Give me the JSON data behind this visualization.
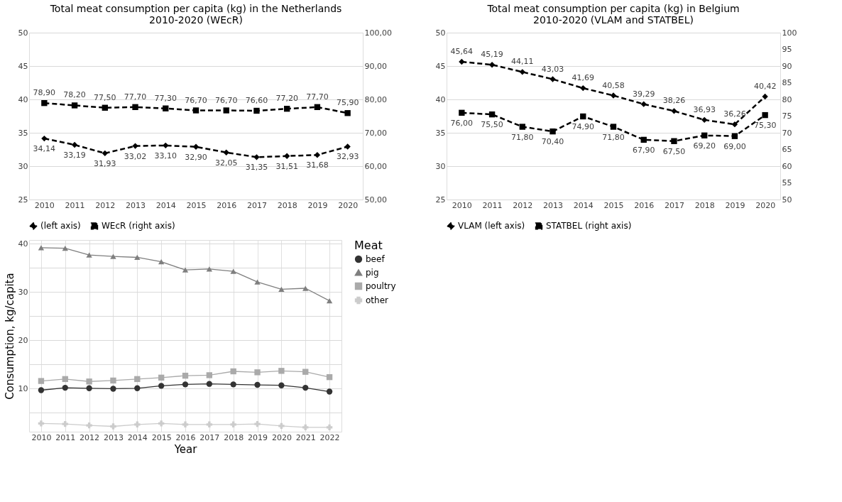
{
  "chart_data": [
    {
      "type": "line",
      "title": "Total meat consumption per capita (kg) in the Netherlands\n2010-2020 (WEcR)",
      "categories": [
        "2010",
        "2011",
        "2012",
        "2013",
        "2014",
        "2015",
        "2016",
        "2017",
        "2018",
        "2019",
        "2020"
      ],
      "ylim": [
        25,
        50
      ],
      "yticks": [
        25,
        30,
        35,
        40,
        45,
        50
      ],
      "y2lim": [
        50,
        100
      ],
      "y2ticks": [
        {
          "value": 50,
          "label": "50,00"
        },
        {
          "value": 60,
          "label": "60,00"
        },
        {
          "value": 70,
          "label": "70,00"
        },
        {
          "value": 80,
          "label": "80,00"
        },
        {
          "value": 90,
          "label": "90,00"
        },
        {
          "value": 100,
          "label": "100,00"
        }
      ],
      "grid": "y",
      "legend": "bottom",
      "line_style": "dashed",
      "series": [
        {
          "name": "(left axis)",
          "color": "#000000",
          "marker": "diamond",
          "axis": "y",
          "values": [
            34.14,
            33.19,
            31.93,
            33.02,
            33.1,
            32.9,
            32.05,
            31.35,
            31.51,
            31.68,
            32.93
          ],
          "value_labels": [
            "34,14",
            "33,19",
            "31,93",
            "33,02",
            "33,10",
            "32,90",
            "32,05",
            "31,35",
            "31,51",
            "31,68",
            "32,93"
          ]
        },
        {
          "name": "WEcR (right axis)",
          "color": "#000000",
          "marker": "square",
          "axis": "y2",
          "values": [
            78.9,
            78.2,
            77.5,
            77.7,
            77.3,
            76.7,
            76.7,
            76.6,
            77.2,
            77.7,
            75.9
          ],
          "value_labels": [
            "78,90",
            "78,20",
            "77,50",
            "77,70",
            "77,30",
            "76,70",
            "76,70",
            "76,60",
            "77,20",
            "77,70",
            "75,90"
          ]
        }
      ]
    },
    {
      "type": "line",
      "title": "Total meat consumption per capita (kg) in Belgium\n2010-2020 (VLAM and STATBEL)",
      "categories": [
        "2010",
        "2011",
        "2012",
        "2013",
        "2014",
        "2015",
        "2016",
        "2017",
        "2018",
        "2019",
        "2020"
      ],
      "ylim": [
        25,
        50
      ],
      "yticks": [
        25,
        30,
        35,
        40,
        45,
        50
      ],
      "y2lim": [
        50,
        100
      ],
      "y2ticks": [
        50,
        55,
        60,
        65,
        70,
        75,
        80,
        85,
        90,
        95,
        100
      ],
      "grid": "y",
      "legend": "bottom",
      "line_style": "dashed",
      "series": [
        {
          "name": "VLAM (left axis)",
          "color": "#000000",
          "marker": "diamond",
          "axis": "y",
          "values": [
            45.64,
            45.19,
            44.11,
            43.03,
            41.69,
            40.58,
            39.29,
            38.26,
            36.93,
            36.26,
            40.42
          ],
          "value_labels": [
            "45,64",
            "45,19",
            "44,11",
            "43,03",
            "41,69",
            "40,58",
            "39,29",
            "38,26",
            "36,93",
            "36,26",
            "40,42"
          ]
        },
        {
          "name": "STATBEL (right axis)",
          "color": "#000000",
          "marker": "square",
          "axis": "y2",
          "values": [
            76.0,
            75.5,
            71.8,
            70.4,
            74.9,
            71.8,
            67.9,
            67.5,
            69.2,
            69.0,
            75.3
          ],
          "value_labels": [
            "76,00",
            "75,50",
            "71,80",
            "70,40",
            "74,90",
            "71,80",
            "67,90",
            "67,50",
            "69,20",
            "69,00",
            "75,30"
          ]
        }
      ]
    },
    {
      "type": "line",
      "xlabel": "Year",
      "ylabel": "Consumption, kg/capita",
      "legend_title": "Meat",
      "categories": [
        "2010",
        "2011",
        "2012",
        "2013",
        "2014",
        "2015",
        "2016",
        "2017",
        "2018",
        "2019",
        "2020",
        "2021",
        "2022"
      ],
      "ylim": [
        1.1,
        40.8
      ],
      "yticks": [
        {
          "value": 5,
          "label": null
        },
        10,
        {
          "value": 15,
          "label": null
        },
        20,
        {
          "value": 25,
          "label": null
        },
        30,
        {
          "value": 35,
          "label": null
        },
        40
      ],
      "grid": true,
      "legend": "right",
      "line_style": "solid",
      "series": [
        {
          "name": "beef",
          "color": "#333333",
          "marker": "circle",
          "values": [
            9.7,
            10.2,
            10.1,
            10.0,
            10.1,
            10.6,
            10.9,
            11.0,
            10.9,
            10.8,
            10.7,
            10.2,
            9.4
          ]
        },
        {
          "name": "pig",
          "color": "#7f7f7f",
          "marker": "triangle",
          "values": [
            39.2,
            39.1,
            37.7,
            37.4,
            37.2,
            36.3,
            34.6,
            34.8,
            34.3,
            32.1,
            30.6,
            30.8,
            28.2
          ]
        },
        {
          "name": "poultry",
          "color": "#aaaaaa",
          "marker": "square",
          "values": [
            11.6,
            12.0,
            11.5,
            11.7,
            12.0,
            12.3,
            12.7,
            12.8,
            13.6,
            13.4,
            13.7,
            13.5,
            12.4
          ]
        },
        {
          "name": "other",
          "color": "#cccccc",
          "marker": "cross",
          "values": [
            2.8,
            2.7,
            2.4,
            2.2,
            2.6,
            2.8,
            2.6,
            2.6,
            2.6,
            2.7,
            2.3,
            2.0,
            2.0
          ]
        }
      ]
    }
  ]
}
